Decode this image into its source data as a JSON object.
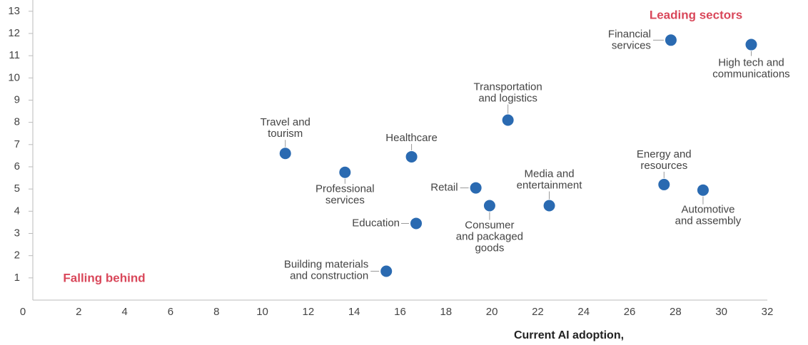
{
  "chart_data": {
    "type": "scatter",
    "x_label": "Current AI adoption,",
    "annotations": [
      "Leading sectors",
      "Falling behind"
    ],
    "annotation_color": "#d9475a",
    "color": "#2a6ab1",
    "x": [
      27.8,
      31.3,
      20.7,
      11.0,
      16.5,
      13.6,
      19.3,
      27.5,
      29.2,
      19.9,
      22.5,
      16.7,
      15.4
    ],
    "values": [
      11.7,
      11.5,
      8.1,
      6.6,
      6.45,
      5.75,
      5.05,
      5.2,
      4.95,
      4.25,
      4.25,
      3.45,
      1.3
    ],
    "labels": [
      [
        "Financial",
        "services"
      ],
      [
        "High tech and",
        "communications"
      ],
      [
        "Transportation",
        "and logistics"
      ],
      [
        "Travel and",
        "tourism"
      ],
      [
        "Healthcare"
      ],
      [
        "Professional",
        "services"
      ],
      [
        "Retail"
      ],
      [
        "Energy and",
        "resources"
      ],
      [
        "Automotive",
        "and assembly"
      ],
      [
        "Consumer",
        "and packaged",
        "goods"
      ],
      [
        "Media and",
        "entertainment"
      ],
      [
        "Education"
      ],
      [
        "Building materials",
        "and construction"
      ]
    ],
    "xlim": [
      0,
      32
    ],
    "xticks": [
      0,
      2,
      4,
      6,
      8,
      10,
      12,
      14,
      16,
      18,
      20,
      22,
      24,
      26,
      28,
      30,
      32
    ],
    "ylim": [
      0,
      13
    ],
    "yticks": [
      1,
      2,
      3,
      4,
      5,
      6,
      7,
      8,
      9,
      10,
      11,
      12,
      13
    ]
  }
}
